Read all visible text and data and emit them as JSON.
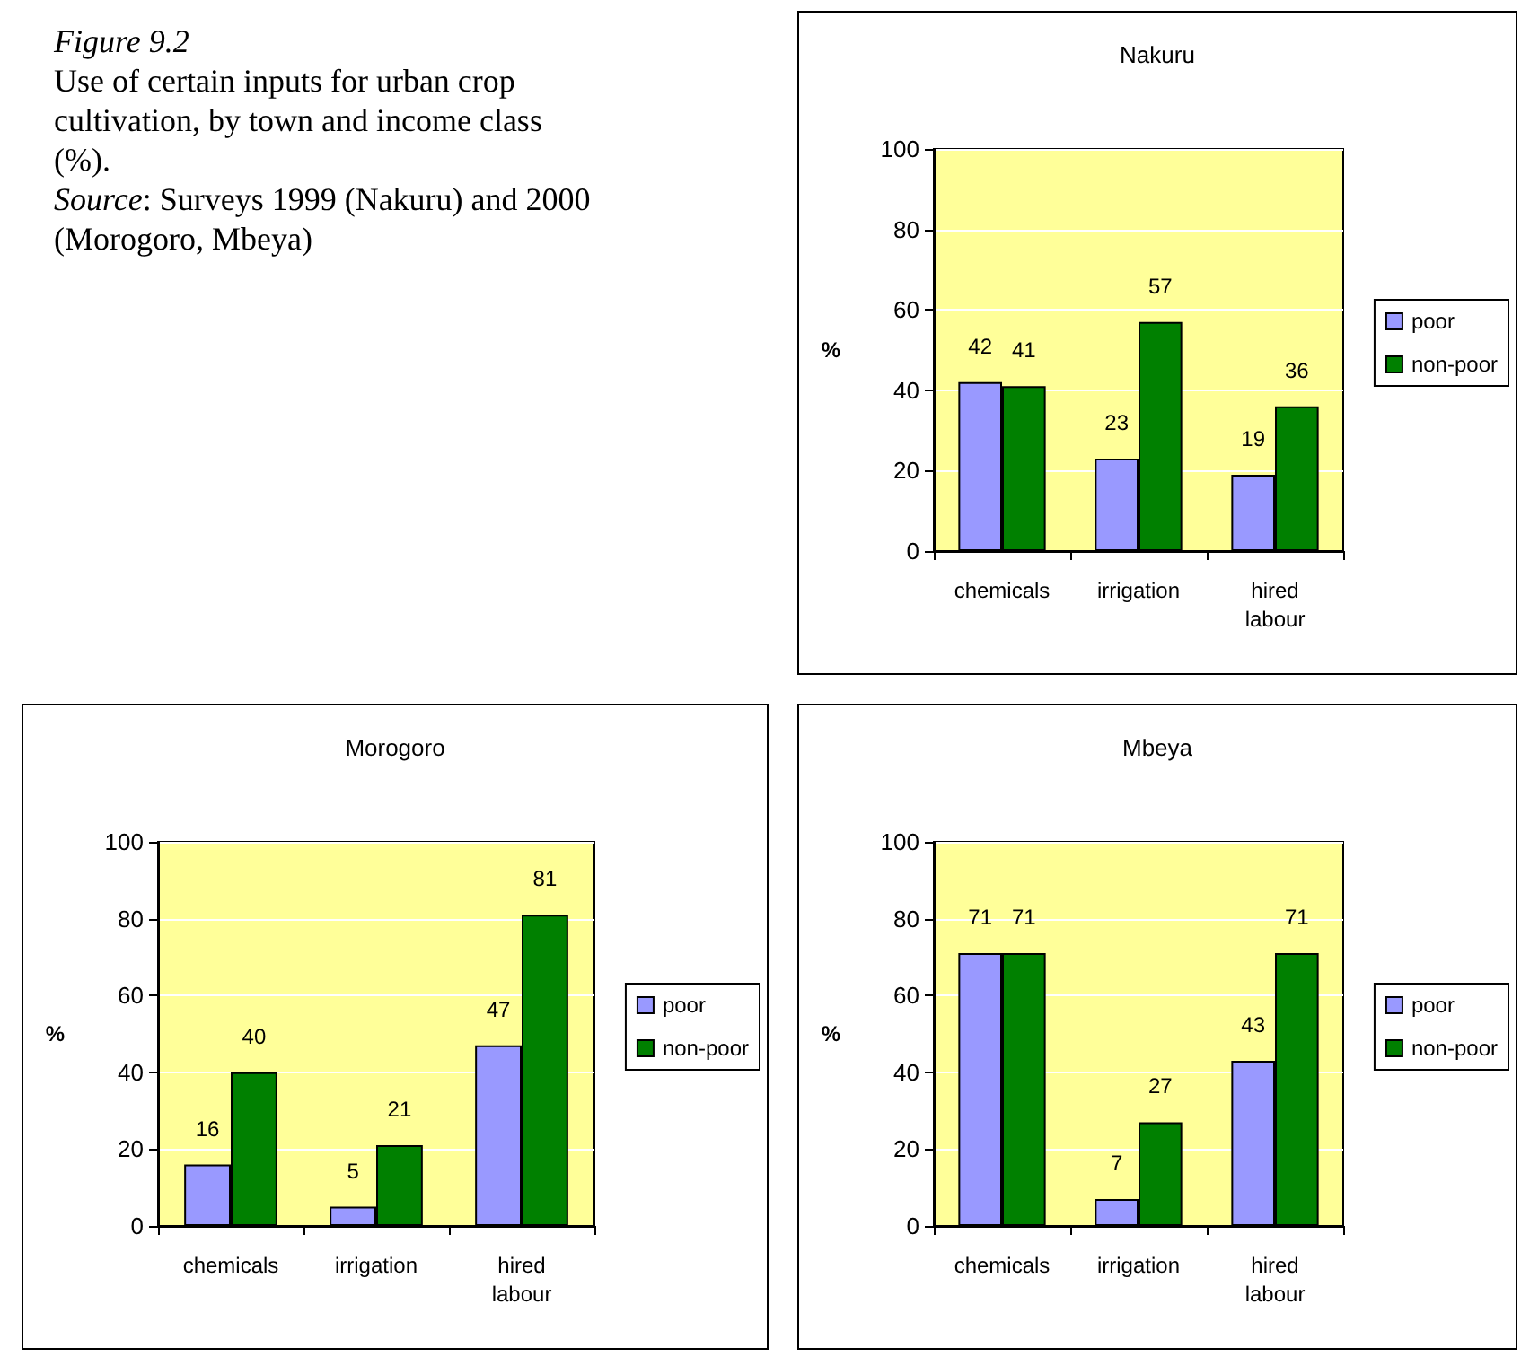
{
  "chart_data": [
    {
      "type": "other",
      "title": "Figure 9.2",
      "subtitle": "Use of certain inputs for urban crop cultivation, by town and income class (%).",
      "annotations": [
        "Source: Surveys 1999 (Nakuru) and 2000 (Morogoro, Mbeya)"
      ]
    },
    {
      "type": "bar",
      "title": "Nakuru",
      "ylabel": "%",
      "categories": [
        "chemicals",
        "irrigation",
        "hired labour"
      ],
      "series": [
        {
          "name": "poor",
          "color": "#9999ff",
          "values": [
            42,
            23,
            19
          ]
        },
        {
          "name": "non-poor",
          "color": "#008000",
          "values": [
            41,
            57,
            36
          ]
        }
      ],
      "ylim": [
        0,
        100
      ],
      "yticks": [
        0,
        20,
        40,
        60,
        80,
        100
      ],
      "grid": "y",
      "legend": "right",
      "data_labels": true
    },
    {
      "type": "bar",
      "title": "Morogoro",
      "ylabel": "%",
      "categories": [
        "chemicals",
        "irrigation",
        "hired labour"
      ],
      "series": [
        {
          "name": "poor",
          "color": "#9999ff",
          "values": [
            16,
            5,
            47
          ]
        },
        {
          "name": "non-poor",
          "color": "#008000",
          "values": [
            40,
            21,
            81
          ]
        }
      ],
      "ylim": [
        0,
        100
      ],
      "yticks": [
        0,
        20,
        40,
        60,
        80,
        100
      ],
      "grid": "y",
      "legend": "right",
      "data_labels": true
    },
    {
      "type": "bar",
      "title": "Mbeya",
      "ylabel": "%",
      "categories": [
        "chemicals",
        "irrigation",
        "hired labour"
      ],
      "series": [
        {
          "name": "poor",
          "color": "#9999ff",
          "values": [
            71,
            7,
            43
          ]
        },
        {
          "name": "non-poor",
          "color": "#008000",
          "values": [
            71,
            27,
            71
          ]
        }
      ],
      "ylim": [
        0,
        100
      ],
      "yticks": [
        0,
        20,
        40,
        60,
        80,
        100
      ],
      "grid": "y",
      "legend": "right",
      "data_labels": true
    }
  ]
}
